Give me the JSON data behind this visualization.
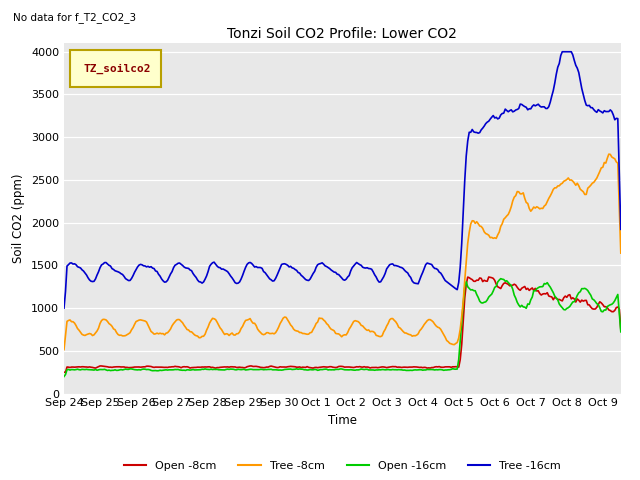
{
  "title": "Tonzi Soil CO2 Profile: Lower CO2",
  "subtitle": "No data for f_T2_CO2_3",
  "xlabel": "Time",
  "ylabel": "Soil CO2 (ppm)",
  "ylim": [
    0,
    4100
  ],
  "yticks": [
    0,
    500,
    1000,
    1500,
    2000,
    2500,
    3000,
    3500,
    4000
  ],
  "legend_box_label": "TZ_soilco2",
  "bg_color": "#e8e8e8",
  "series_colors": {
    "open_8cm": "#cc0000",
    "tree_8cm": "#ff9900",
    "open_16cm": "#00cc00",
    "tree_16cm": "#0000cc"
  },
  "legend_labels": [
    "Open -8cm",
    "Tree -8cm",
    "Open -16cm",
    "Tree -16cm"
  ],
  "xtick_labels": [
    "Sep 24",
    "Sep 25",
    "Sep 26",
    "Sep 27",
    "Sep 28",
    "Sep 29",
    "Sep 30",
    "Oct 1",
    "Oct 2",
    "Oct 3",
    "Oct 4",
    "Oct 5",
    "Oct 6",
    "Oct 7",
    "Oct 8",
    "Oct 9"
  ],
  "figsize": [
    6.4,
    4.8
  ],
  "dpi": 100
}
